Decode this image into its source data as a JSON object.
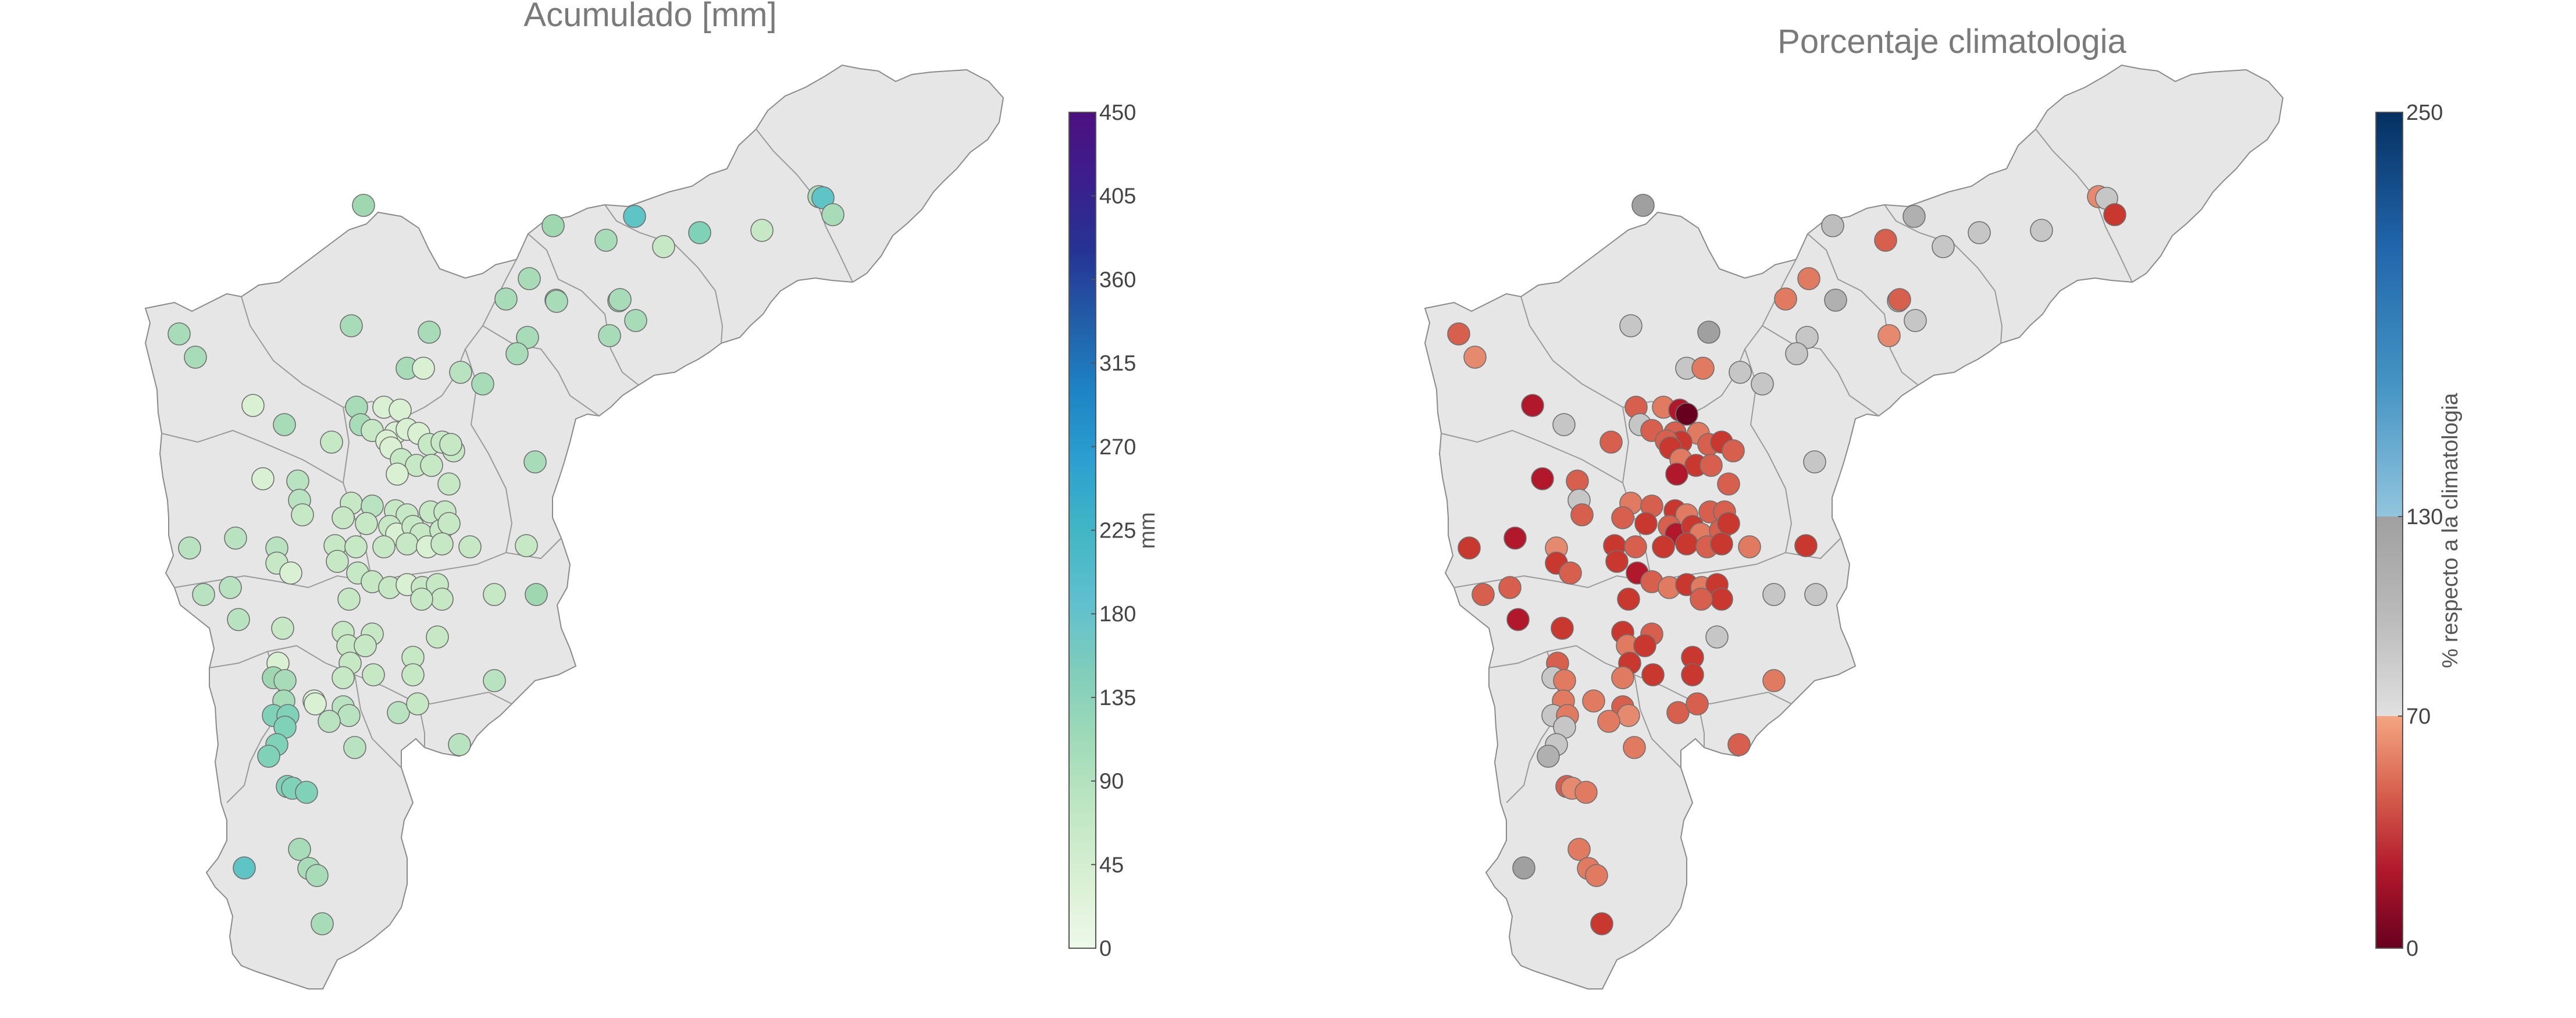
{
  "maps": {
    "left": {
      "title": "Acumulado [mm]",
      "colorbar": {
        "label": "mm",
        "ticks": [
          "0",
          "45",
          "90",
          "135",
          "180",
          "225",
          "270",
          "315",
          "360",
          "405",
          "450"
        ],
        "colors": [
          "#edf8e9",
          "#d9f0d3",
          "#bfe6c3",
          "#9fdab8",
          "#7fcdbb",
          "#5ebfcf",
          "#41b6c4",
          "#2c9fd0",
          "#1d84c4",
          "#225ea8",
          "#253494",
          "#3b1f8c",
          "#4d1080"
        ]
      },
      "stations": []
    },
    "right": {
      "title": "Porcentaje climatologia",
      "colorbar": {
        "label": "% respecto a la climatologia",
        "ticks": [
          "0",
          "70",
          "130",
          "250"
        ],
        "low_colors": [
          "#67001f",
          "#b2182b",
          "#d6604d",
          "#f4a582"
        ],
        "mid_colors": [
          "#e0e0e0",
          "#bababa",
          "#a0a0a0"
        ],
        "high_colors": [
          "#92c5de",
          "#4393c3",
          "#2166ac",
          "#053061"
        ]
      },
      "stations": []
    }
  }
}
